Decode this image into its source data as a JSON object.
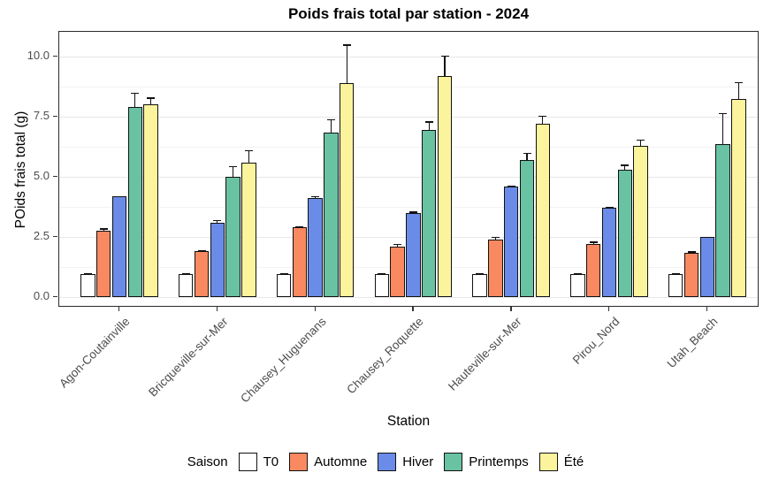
{
  "title": "Poids frais total par station  - 2024",
  "y_axis": {
    "label": "POids frais total (g)",
    "tick_labels": [
      "0.0",
      "2.5",
      "5.0",
      "7.5",
      "10.0"
    ]
  },
  "x_axis": {
    "label": "Station"
  },
  "legend": {
    "title": "Saison"
  },
  "colors": {
    "panel_border": "#2b2b2b",
    "grid_major": "#e7e7e7",
    "grid_minor": "#f3f3f3",
    "bar_outline": "#111111"
  },
  "chart_data": {
    "type": "bar",
    "title": "Poids frais total par station  - 2024",
    "xlabel": "Station",
    "ylabel": "POids frais total (g)",
    "ylim": [
      0,
      10.5
    ],
    "y_major_ticks": [
      0,
      2.5,
      5,
      7.5,
      10
    ],
    "y_minor_ticks": [
      1.25,
      3.75,
      6.25,
      8.75
    ],
    "grid": true,
    "legend_position": "bottom",
    "legend_title": "Saison",
    "error_bars": "upper",
    "categories": [
      "Agon-Coutainville",
      "Bricqueville-sur-Mer",
      "Chausey_Huguenans",
      "Chausey_Roquette",
      "Hauteville-sur-Mer",
      "Pirou_Nord",
      "Utah_Beach"
    ],
    "series": [
      {
        "name": "T0",
        "color": "#FFFFFF",
        "values": [
          0.95,
          0.95,
          0.95,
          0.95,
          0.95,
          0.95,
          0.95
        ],
        "upper_errors": [
          0.05,
          0.05,
          0.05,
          0.05,
          0.05,
          0.05,
          0.05
        ]
      },
      {
        "name": "Automne",
        "color": "#F98961",
        "values": [
          2.75,
          1.9,
          2.9,
          2.1,
          2.4,
          2.2,
          1.85
        ],
        "upper_errors": [
          0.1,
          0.05,
          0.05,
          0.1,
          0.1,
          0.1,
          0.05
        ]
      },
      {
        "name": "Hiver",
        "color": "#6A8CE8",
        "values": [
          4.2,
          3.1,
          4.1,
          3.5,
          4.6,
          3.7,
          2.5
        ],
        "upper_errors": [
          0,
          0.1,
          0.1,
          0.05,
          0.05,
          0.05,
          0
        ]
      },
      {
        "name": "Printemps",
        "color": "#69C2A2",
        "values": [
          7.9,
          5.0,
          6.85,
          6.95,
          5.7,
          5.3,
          6.35
        ],
        "upper_errors": [
          0.6,
          0.45,
          0.55,
          0.35,
          0.3,
          0.2,
          1.3
        ]
      },
      {
        "name": "Été",
        "color": "#FCF49D",
        "values": [
          8.0,
          5.6,
          8.9,
          9.2,
          7.2,
          6.3,
          8.25
        ],
        "upper_errors": [
          0.3,
          0.5,
          1.6,
          0.85,
          0.35,
          0.25,
          0.7
        ]
      }
    ]
  }
}
